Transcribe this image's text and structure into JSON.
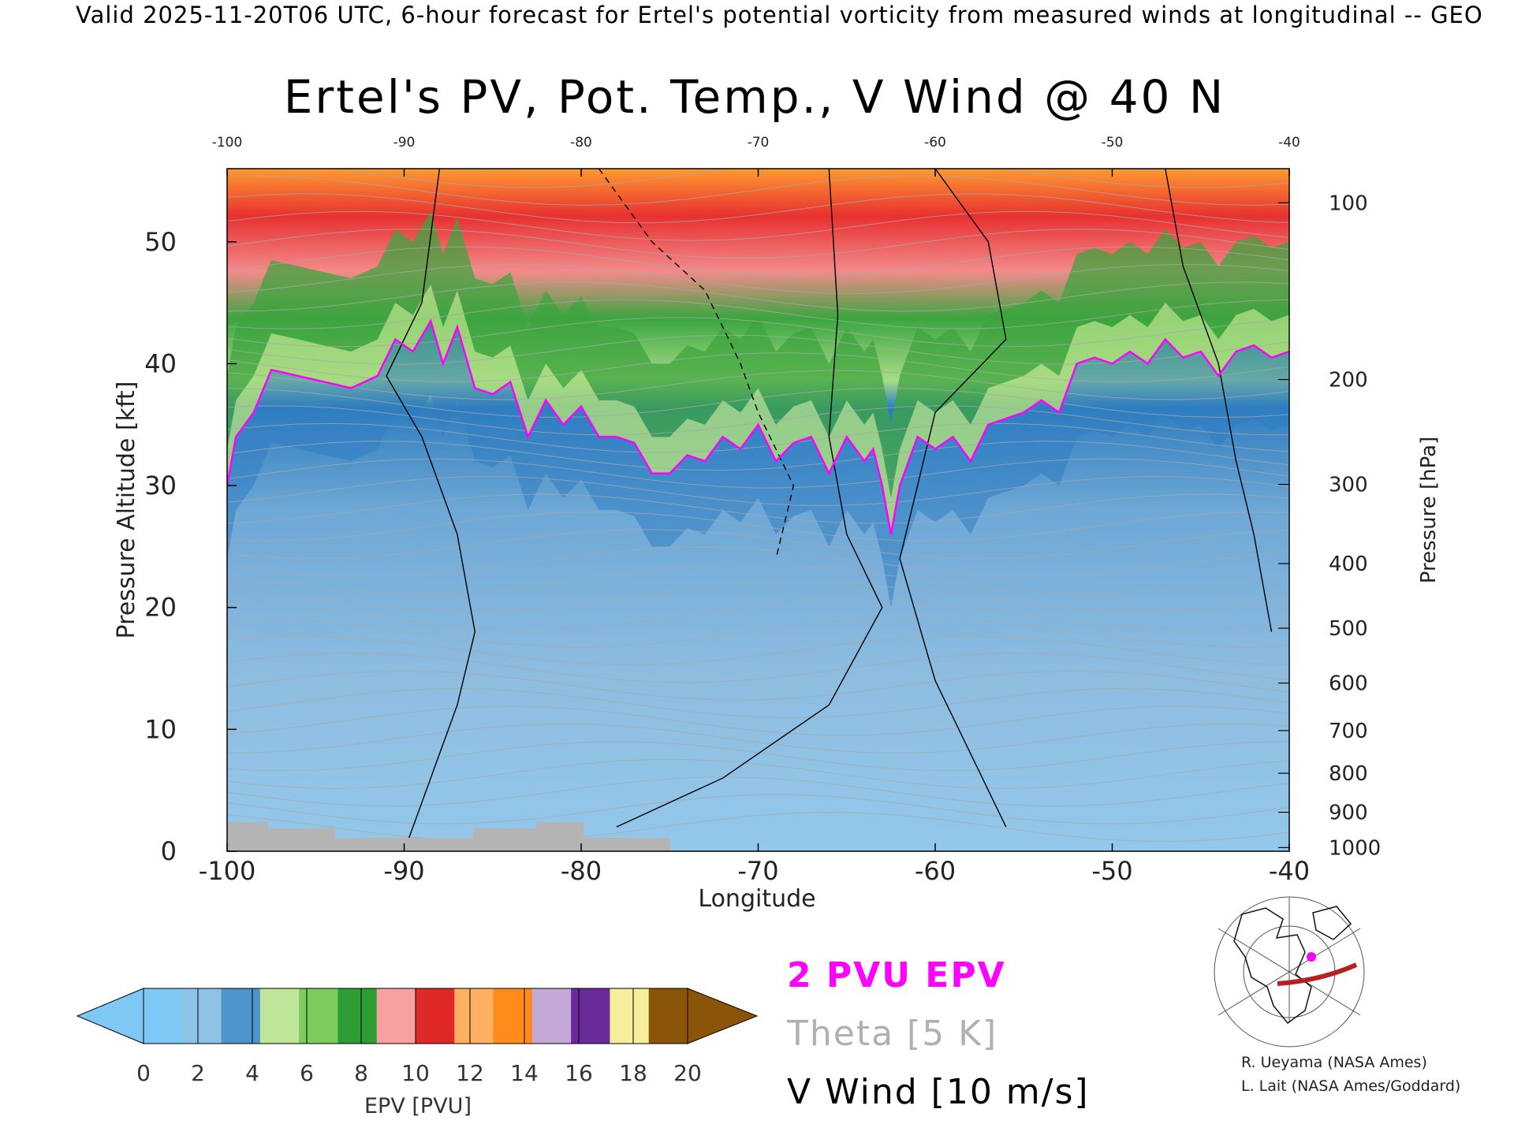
{
  "header": {
    "caption": "Valid 2025-11-20T06 UTC, 6-hour forecast for Ertel's potential vorticity from measured winds at longitudinal -- GEO"
  },
  "chart_data": {
    "type": "heatmap",
    "title": "Ertel's PV, Pot. Temp., V Wind @ 40 N",
    "xlabel": "Longitude",
    "ylabel_left": "Pressure Altitude [kft]",
    "ylabel_right": "Pressure [hPa]",
    "xlim": [
      -100,
      -40
    ],
    "ylim": [
      0,
      56
    ],
    "grid": false,
    "x_ticks": [
      "-100",
      "-90",
      "-80",
      "-70",
      "-60",
      "-50",
      "-40"
    ],
    "y_ticks": [
      "0",
      "10",
      "20",
      "30",
      "40",
      "50"
    ],
    "pressure_ticks": [
      {
        "label": "100",
        "kft": 53.2
      },
      {
        "label": "200",
        "kft": 38.7
      },
      {
        "label": "300",
        "kft": 30.1
      },
      {
        "label": "400",
        "kft": 23.6
      },
      {
        "label": "500",
        "kft": 18.3
      },
      {
        "label": "600",
        "kft": 13.8
      },
      {
        "label": "700",
        "kft": 9.9
      },
      {
        "label": "800",
        "kft": 6.4
      },
      {
        "label": "900",
        "kft": 3.2
      },
      {
        "label": "1000",
        "kft": 0.3
      }
    ],
    "tropopause_2pvu_kft": [
      {
        "x": -100,
        "y": 30
      },
      {
        "x": -99.5,
        "y": 34
      },
      {
        "x": -98.5,
        "y": 36
      },
      {
        "x": -97.5,
        "y": 39.5
      },
      {
        "x": -96,
        "y": 39
      },
      {
        "x": -94.5,
        "y": 38.5
      },
      {
        "x": -93,
        "y": 38
      },
      {
        "x": -91.5,
        "y": 39
      },
      {
        "x": -90.5,
        "y": 42
      },
      {
        "x": -89.5,
        "y": 41
      },
      {
        "x": -88.5,
        "y": 43.5
      },
      {
        "x": -87.8,
        "y": 40
      },
      {
        "x": -87,
        "y": 43
      },
      {
        "x": -86,
        "y": 38
      },
      {
        "x": -85,
        "y": 37.5
      },
      {
        "x": -84,
        "y": 38.5
      },
      {
        "x": -83,
        "y": 34
      },
      {
        "x": -82,
        "y": 37
      },
      {
        "x": -81,
        "y": 35
      },
      {
        "x": -80,
        "y": 36.5
      },
      {
        "x": -79,
        "y": 34
      },
      {
        "x": -78,
        "y": 34
      },
      {
        "x": -77,
        "y": 33.5
      },
      {
        "x": -76,
        "y": 31
      },
      {
        "x": -75,
        "y": 31
      },
      {
        "x": -74,
        "y": 32.5
      },
      {
        "x": -73,
        "y": 32
      },
      {
        "x": -72,
        "y": 34
      },
      {
        "x": -71,
        "y": 33
      },
      {
        "x": -70,
        "y": 35
      },
      {
        "x": -69,
        "y": 32
      },
      {
        "x": -68,
        "y": 33.5
      },
      {
        "x": -67,
        "y": 34
      },
      {
        "x": -66,
        "y": 31
      },
      {
        "x": -65,
        "y": 34
      },
      {
        "x": -64,
        "y": 32
      },
      {
        "x": -63.5,
        "y": 33
      },
      {
        "x": -63,
        "y": 30
      },
      {
        "x": -62.5,
        "y": 26
      },
      {
        "x": -62,
        "y": 30
      },
      {
        "x": -61,
        "y": 34
      },
      {
        "x": -60,
        "y": 33
      },
      {
        "x": -59,
        "y": 34
      },
      {
        "x": -58,
        "y": 32
      },
      {
        "x": -57,
        "y": 35
      },
      {
        "x": -56,
        "y": 35.5
      },
      {
        "x": -55,
        "y": 36
      },
      {
        "x": -54,
        "y": 37
      },
      {
        "x": -53,
        "y": 36
      },
      {
        "x": -52,
        "y": 40
      },
      {
        "x": -51,
        "y": 40.5
      },
      {
        "x": -50,
        "y": 40
      },
      {
        "x": -49,
        "y": 41
      },
      {
        "x": -48,
        "y": 40
      },
      {
        "x": -47,
        "y": 42
      },
      {
        "x": -46,
        "y": 40.5
      },
      {
        "x": -45,
        "y": 41
      },
      {
        "x": -44,
        "y": 39
      },
      {
        "x": -43,
        "y": 41
      },
      {
        "x": -42,
        "y": 41.5
      },
      {
        "x": -41,
        "y": 40.5
      },
      {
        "x": -40,
        "y": 41
      }
    ],
    "colorbar": {
      "label": "EPV [PVU]",
      "tick_labels": [
        "0",
        "2",
        "4",
        "6",
        "8",
        "10",
        "12",
        "14",
        "16",
        "18",
        "20"
      ],
      "colors": [
        "#7ec8f5",
        "#8fc3e6",
        "#4d93cc",
        "#bfe59a",
        "#7dcb5c",
        "#2f9d34",
        "#f7a0a0",
        "#e02828",
        "#ffb060",
        "#ff8c1a",
        "#c4a8d8",
        "#6a2a9a",
        "#f5ee9a",
        "#8a5508"
      ]
    },
    "legend": [
      {
        "label": "2 PVU EPV",
        "color": "#ff00ff"
      },
      {
        "label": "Theta [5 K]",
        "color": "#b0b0b0"
      },
      {
        "label": "V Wind [10 m/s]",
        "color": "#000000"
      }
    ]
  },
  "credits": {
    "line1": "R. Ueyama (NASA Ames)",
    "line2": "L. Lait (NASA Ames/Goddard)"
  },
  "icons": {
    "locator_map": "north-america-polar-map-icon"
  }
}
